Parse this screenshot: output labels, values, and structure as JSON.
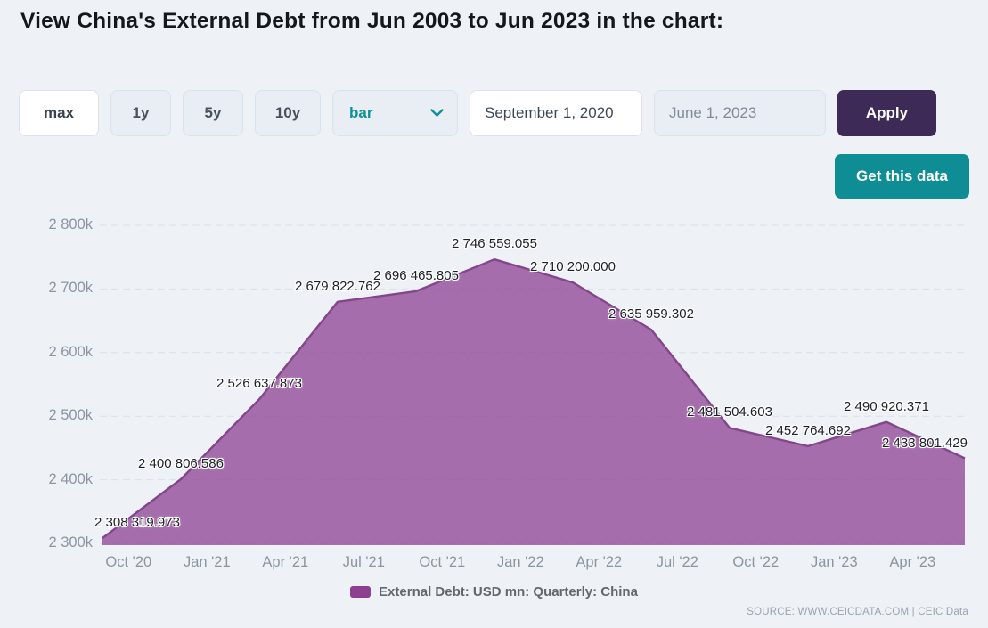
{
  "page": {
    "title": "View China's External Debt from Jun 2003 to Jun 2023 in the chart:"
  },
  "toolbar": {
    "range_buttons": [
      {
        "label": "max",
        "active": true
      },
      {
        "label": "1y",
        "active": false
      },
      {
        "label": "5y",
        "active": false
      },
      {
        "label": "10y",
        "active": false
      }
    ],
    "chart_type_select": {
      "value": "bar"
    },
    "date_from": "September 1, 2020",
    "date_to": "June 1, 2023",
    "apply_label": "Apply",
    "get_data_label": "Get this data"
  },
  "colors": {
    "page_background": "#eef2f7",
    "accent_teal": "#0e8d94",
    "select_text_teal": "#12909a",
    "apply_purple": "#3e2a57",
    "series_fill": "#954f9b",
    "series_line": "#82478a",
    "legend_marker": "#8d3f92",
    "gridline": "#d9dfe7",
    "axis_label": "#8b95a0"
  },
  "chart_data": {
    "type": "area",
    "title": "",
    "xlabel": "",
    "ylabel": "",
    "grid": "horizontal-dashed",
    "legend_position": "bottom-center",
    "y_range": [
      2300000,
      2800000
    ],
    "y_tick_labels": [
      "2 300k",
      "2 400k",
      "2 500k",
      "2 600k",
      "2 700k",
      "2 800k"
    ],
    "x_tick_labels": [
      "Oct '20",
      "Jan '21",
      "Apr '21",
      "Jul '21",
      "Oct '21",
      "Jan '22",
      "Apr '22",
      "Jul '22",
      "Oct '22",
      "Jan '23",
      "Apr '23"
    ],
    "series": [
      {
        "name": "External Debt: USD mn: Quarterly: China",
        "x": [
          "Sep 2020",
          "Dec 2020",
          "Mar 2021",
          "Jun 2021",
          "Sep 2021",
          "Dec 2021",
          "Mar 2022",
          "Jun 2022",
          "Sep 2022",
          "Dec 2022",
          "Mar 2023",
          "Jun 2023"
        ],
        "values": [
          2308319.973,
          2400806.586,
          2526637.873,
          2679822.762,
          2696465.805,
          2746559.055,
          2710200.0,
          2635959.302,
          2481504.603,
          2452764.692,
          2490920.371,
          2433801.429
        ],
        "point_labels": [
          "2 308 319.973",
          "2 400 806.586",
          "2 526 637.873",
          "2 679 822.762",
          "2 696 465.805",
          "2 746 559.055",
          "2 710 200.000",
          "2 635 959.302",
          "2 481 504.603",
          "2 452 764.692",
          "2 490 920.371",
          "2 433 801.429"
        ]
      }
    ]
  },
  "footer": {
    "source": "SOURCE: WWW.CEICDATA.COM | CEIC Data"
  }
}
